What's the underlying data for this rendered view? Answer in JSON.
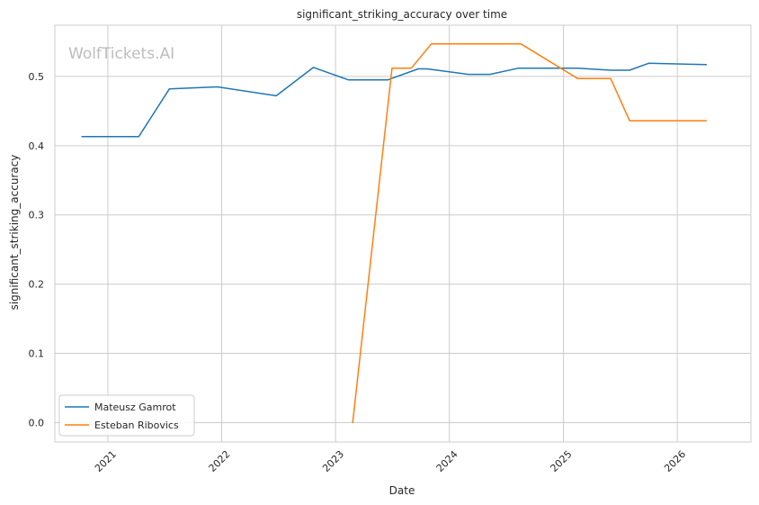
{
  "chart_data": {
    "type": "line",
    "title": "significant_striking_accuracy over time",
    "xlabel": "Date",
    "ylabel": "significant_striking_accuracy",
    "watermark": "WolfTickets.AI",
    "x_ticks": [
      "2021",
      "2022",
      "2023",
      "2024",
      "2025",
      "2026"
    ],
    "y_ticks": [
      "0.0",
      "0.1",
      "0.2",
      "0.3",
      "0.4",
      "0.5"
    ],
    "xlim": [
      "2020-07-15",
      "2026-08-25"
    ],
    "ylim": [
      -0.028,
      0.574
    ],
    "grid": true,
    "legend_position": "lower-left",
    "series": [
      {
        "name": "Mateusz Gamrot",
        "color": "#1f77b4",
        "points": [
          [
            "2020-10-10",
            0.413
          ],
          [
            "2021-04-10",
            0.413
          ],
          [
            "2021-07-17",
            0.482
          ],
          [
            "2021-12-18",
            0.485
          ],
          [
            "2022-06-25",
            0.472
          ],
          [
            "2022-10-22",
            0.513
          ],
          [
            "2023-02-12",
            0.495
          ],
          [
            "2023-06-17",
            0.495
          ],
          [
            "2023-09-23",
            0.511
          ],
          [
            "2023-10-21",
            0.511
          ],
          [
            "2024-03-02",
            0.503
          ],
          [
            "2024-05-10",
            0.503
          ],
          [
            "2024-08-10",
            0.512
          ],
          [
            "2025-02-15",
            0.512
          ],
          [
            "2025-06-01",
            0.509
          ],
          [
            "2025-08-01",
            0.509
          ],
          [
            "2025-10-01",
            0.519
          ],
          [
            "2026-04-04",
            0.517
          ]
        ]
      },
      {
        "name": "Esteban Ribovics",
        "color": "#ff7f0e",
        "points": [
          [
            "2023-02-25",
            0.0
          ],
          [
            "2023-07-01",
            0.512
          ],
          [
            "2023-09-01",
            0.512
          ],
          [
            "2023-11-04",
            0.547
          ],
          [
            "2024-08-17",
            0.547
          ],
          [
            "2024-09-01",
            0.543
          ],
          [
            "2025-02-15",
            0.497
          ],
          [
            "2025-06-01",
            0.497
          ],
          [
            "2025-08-01",
            0.436
          ],
          [
            "2026-04-04",
            0.436
          ]
        ]
      }
    ]
  }
}
